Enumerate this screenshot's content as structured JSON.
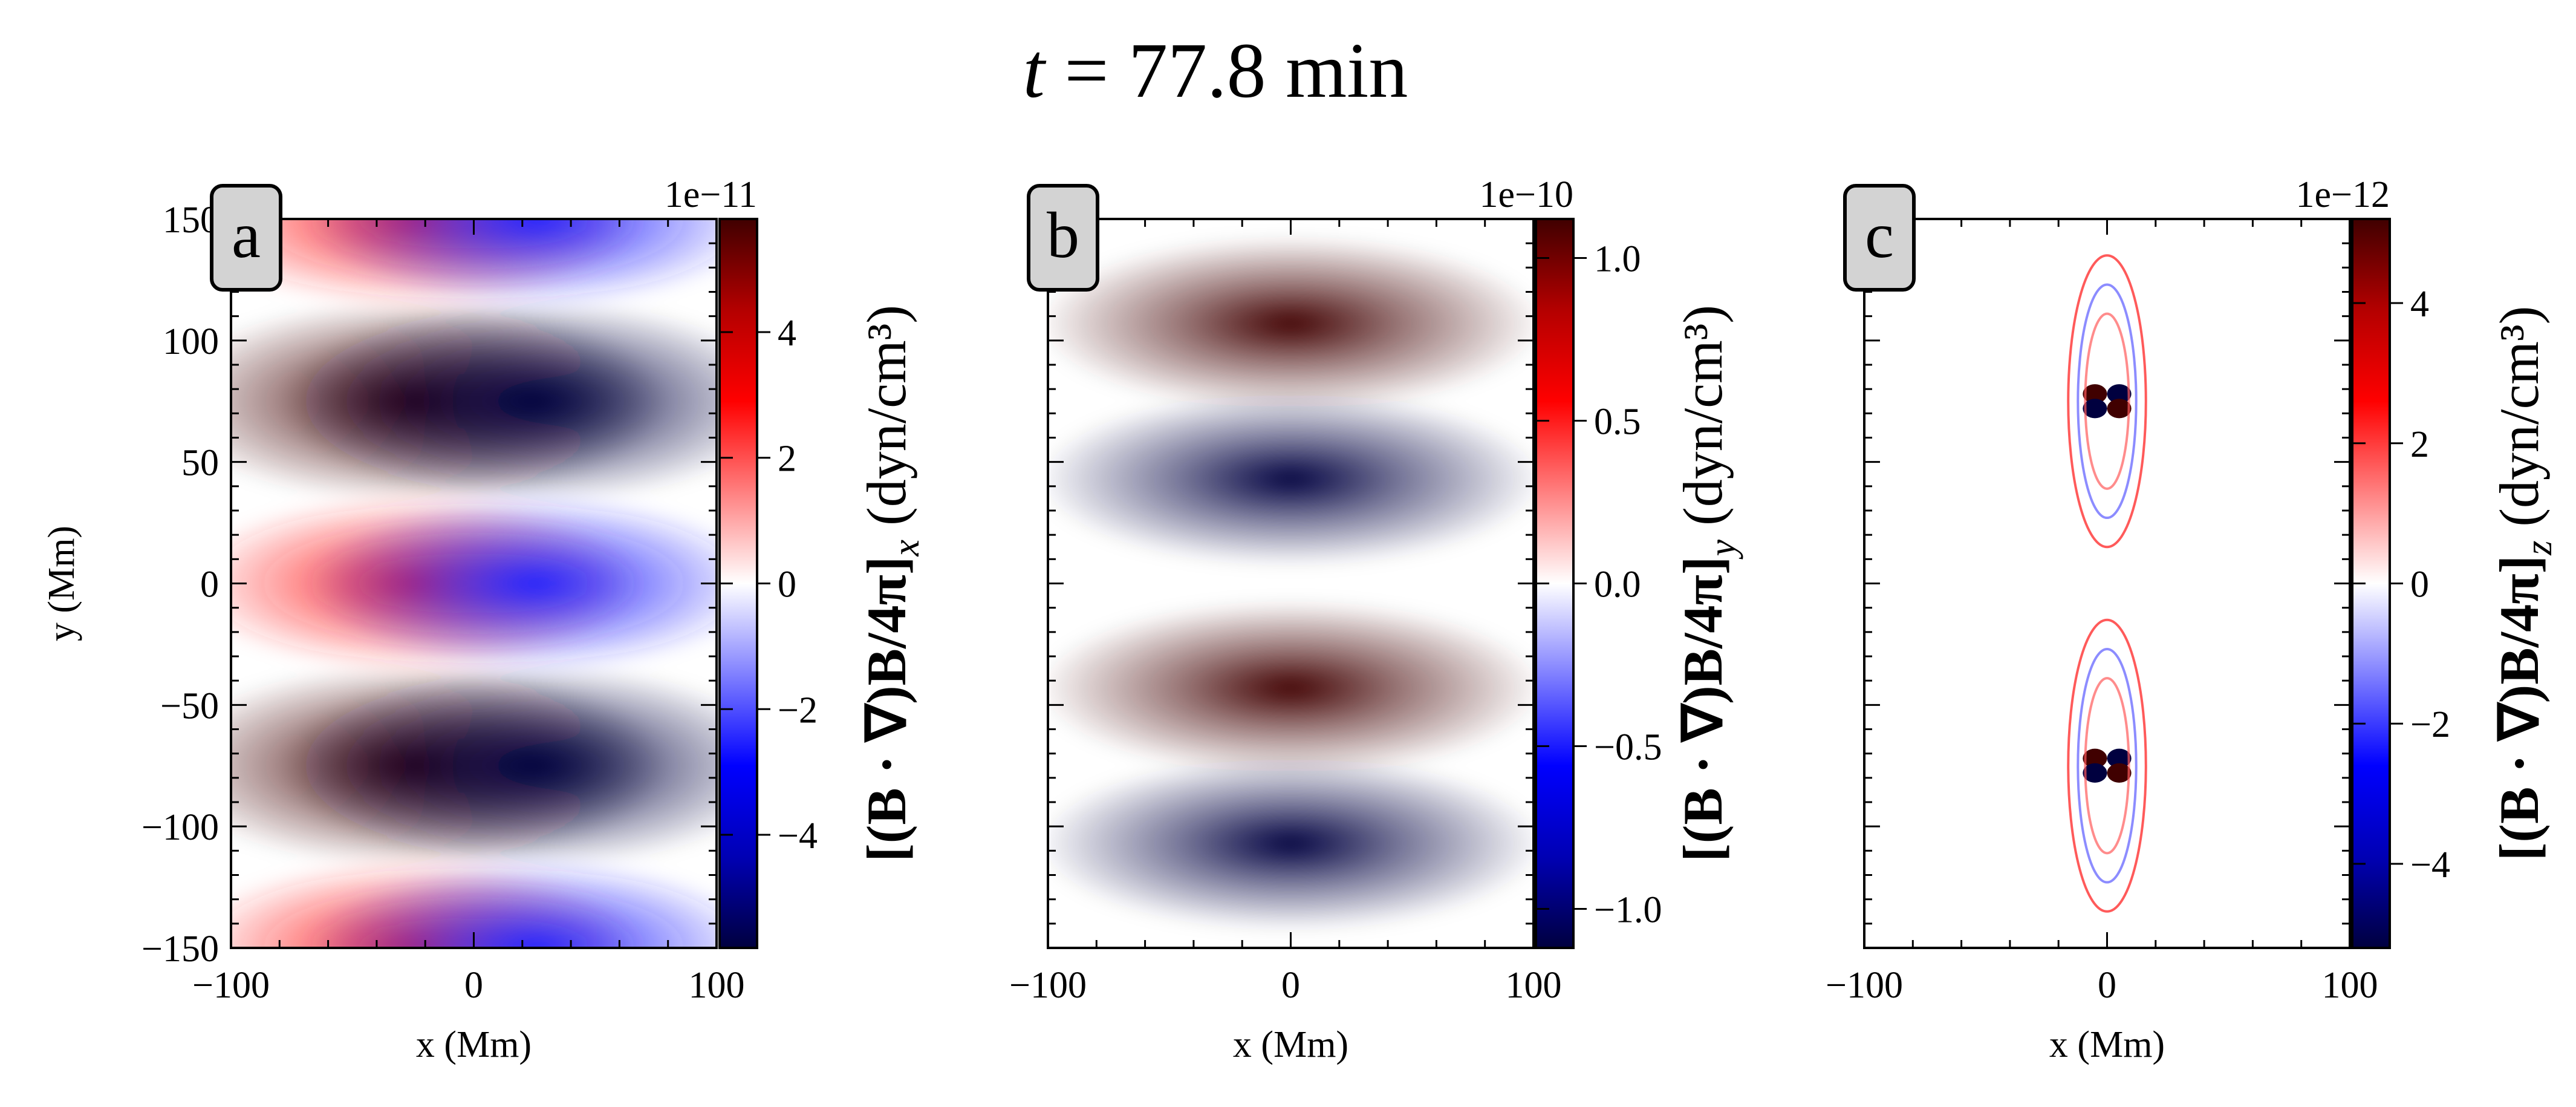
{
  "figure": {
    "title_var": "t",
    "title_eq": " = ",
    "title_value": "77.8 min"
  },
  "colors": {
    "cmap": [
      "#00003f",
      "#0000b4",
      "#0000ff",
      "#8080ff",
      "#ffffff",
      "#ff8080",
      "#ff0000",
      "#b40000",
      "#400000"
    ],
    "label_box_fill": "#d3d3d3",
    "axes": "#000000"
  },
  "chart_data": [
    {
      "type": "heatmap",
      "label": "a",
      "xlabel": "x (Mm)",
      "ylabel": "y (Mm)",
      "xlim": [
        -100,
        100
      ],
      "ylim": [
        -150,
        150
      ],
      "xticks": [
        -100,
        0,
        100
      ],
      "xticklabels": [
        "−100",
        "0",
        "100"
      ],
      "yticks": [
        150,
        100,
        50,
        0,
        -50,
        -100,
        -150
      ],
      "yticklabels": [
        "150",
        "100",
        "50",
        "0",
        "−50",
        "−100",
        "−150"
      ],
      "show_yticklabels": true,
      "colorbar": {
        "scale_text": "1e−11",
        "clim": [
          -5.8,
          5.8
        ],
        "ticks": [
          4,
          2,
          0,
          -2,
          -4
        ],
        "ticklabels": [
          "4",
          "2",
          "0",
          "−2",
          "−4"
        ],
        "label_main": "[(B · ∇)B/4π]",
        "label_sub": "x",
        "label_unit": " (dyn/cm³)"
      },
      "features": [
        {
          "kind": "dipole_x",
          "x": 25,
          "y": 75,
          "value": -5.8
        },
        {
          "kind": "dipole_x",
          "x": 25,
          "y": -75,
          "value": -5.8
        },
        {
          "kind": "dipole_x",
          "x": 25,
          "y": 0,
          "value": -2.5
        },
        {
          "kind": "dipole_x",
          "x": 25,
          "y": 150,
          "value": -2.5
        },
        {
          "kind": "dipole_x",
          "x": 25,
          "y": -150,
          "value": -2.5
        }
      ]
    },
    {
      "type": "heatmap",
      "label": "b",
      "xlabel": "x (Mm)",
      "ylabel": "",
      "xlim": [
        -100,
        100
      ],
      "ylim": [
        -150,
        150
      ],
      "xticks": [
        -100,
        0,
        100
      ],
      "xticklabels": [
        "−100",
        "0",
        "100"
      ],
      "yticks": [
        150,
        100,
        50,
        0,
        -50,
        -100,
        -150
      ],
      "yticklabels": [],
      "show_yticklabels": false,
      "colorbar": {
        "scale_text": "1e−10",
        "clim": [
          -1.12,
          1.12
        ],
        "ticks": [
          1.0,
          0.5,
          0.0,
          -0.5,
          -1.0
        ],
        "ticklabels": [
          "1.0",
          "0.5",
          "0.0",
          "−0.5",
          "−1.0"
        ],
        "label_main": "[(B · ∇)B/4π]",
        "label_sub": "y",
        "label_unit": " (dyn/cm³)"
      },
      "features": [
        {
          "kind": "blob",
          "x": 0,
          "y": 107,
          "value": 1.12
        },
        {
          "kind": "blob",
          "x": 0,
          "y": 43,
          "value": -1.12
        },
        {
          "kind": "blob",
          "x": 0,
          "y": -43,
          "value": 1.12
        },
        {
          "kind": "blob",
          "x": 0,
          "y": -107,
          "value": -1.12
        }
      ]
    },
    {
      "type": "heatmap",
      "label": "c",
      "xlabel": "x (Mm)",
      "ylabel": "",
      "xlim": [
        -100,
        100
      ],
      "ylim": [
        -150,
        150
      ],
      "xticks": [
        -100,
        0,
        100
      ],
      "xticklabels": [
        "−100",
        "0",
        "100"
      ],
      "yticks": [
        150,
        100,
        50,
        0,
        -50,
        -100,
        -150
      ],
      "yticklabels": [],
      "show_yticklabels": false,
      "colorbar": {
        "scale_text": "1e−12",
        "clim": [
          -5.2,
          5.2
        ],
        "ticks": [
          4,
          2,
          0,
          -2,
          -4
        ],
        "ticklabels": [
          "4",
          "2",
          "0",
          "−2",
          "−4"
        ],
        "label_main": "[(B · ∇)B/4π]",
        "label_sub": "z",
        "label_unit": " (dyn/cm³)"
      },
      "features": [
        {
          "kind": "quad",
          "x": 0,
          "y": 75,
          "value": 5.2
        },
        {
          "kind": "quad",
          "x": 0,
          "y": -75,
          "value": 5.2
        },
        {
          "kind": "shell",
          "x": 0,
          "y": 75,
          "value": 0.6
        },
        {
          "kind": "shell",
          "x": 0,
          "y": -75,
          "value": 0.6
        }
      ]
    }
  ]
}
